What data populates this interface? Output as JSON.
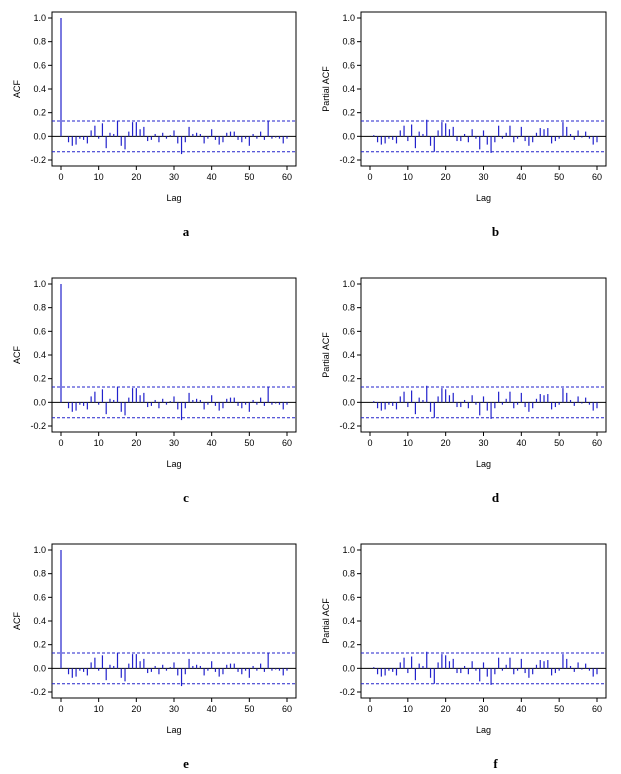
{
  "chart_data": [
    {
      "type": "bar",
      "panel_label": "a",
      "xlabel": "Lag",
      "ylabel": "ACF",
      "xlim": [
        0,
        60
      ],
      "ylim": [
        -0.2,
        1.0
      ],
      "xticks": [
        "0",
        "10",
        "20",
        "30",
        "40",
        "50",
        "60"
      ],
      "yticks": [
        "-0.2",
        "0.0",
        "0.2",
        "0.4",
        "0.6",
        "0.8",
        "1.0"
      ],
      "confidence_band": [
        0.13,
        -0.13
      ],
      "x": [
        0,
        1,
        2,
        3,
        4,
        5,
        6,
        7,
        8,
        9,
        10,
        11,
        12,
        13,
        14,
        15,
        16,
        17,
        18,
        19,
        20,
        21,
        22,
        23,
        24,
        25,
        26,
        27,
        28,
        29,
        30,
        31,
        32,
        33,
        34,
        35,
        36,
        37,
        38,
        39,
        40,
        41,
        42,
        43,
        44,
        45,
        46,
        47,
        48,
        49,
        50,
        51,
        52,
        53,
        54,
        55,
        56,
        57,
        58,
        59,
        60
      ],
      "values": [
        1.0,
        0.0,
        -0.05,
        -0.08,
        -0.07,
        -0.02,
        -0.03,
        -0.06,
        0.05,
        0.09,
        -0.02,
        0.11,
        -0.1,
        0.03,
        0.02,
        0.13,
        -0.08,
        -0.11,
        0.04,
        0.12,
        0.12,
        0.06,
        0.08,
        -0.04,
        -0.03,
        0.02,
        -0.05,
        0.03,
        -0.02,
        0.01,
        0.05,
        -0.06,
        -0.15,
        -0.05,
        0.08,
        0.02,
        0.03,
        0.02,
        -0.06,
        -0.02,
        0.06,
        -0.03,
        -0.07,
        -0.05,
        0.03,
        0.04,
        0.04,
        -0.03,
        -0.05,
        -0.02,
        -0.08,
        0.02,
        -0.02,
        0.04,
        -0.03,
        0.13,
        -0.02,
        -0.01,
        -0.02,
        -0.06,
        -0.02
      ]
    },
    {
      "type": "bar",
      "panel_label": "b",
      "xlabel": "Lag",
      "ylabel": "Partial ACF",
      "xlim": [
        0,
        60
      ],
      "ylim": [
        -0.2,
        1.0
      ],
      "xticks": [
        "0",
        "10",
        "20",
        "30",
        "40",
        "50",
        "60"
      ],
      "yticks": [
        "-0.2",
        "0.0",
        "0.2",
        "0.4",
        "0.6",
        "0.8",
        "1.0"
      ],
      "confidence_band": [
        0.13,
        -0.13
      ],
      "x": [
        1,
        2,
        3,
        4,
        5,
        6,
        7,
        8,
        9,
        10,
        11,
        12,
        13,
        14,
        15,
        16,
        17,
        18,
        19,
        20,
        21,
        22,
        23,
        24,
        25,
        26,
        27,
        28,
        29,
        30,
        31,
        32,
        33,
        34,
        35,
        36,
        37,
        38,
        39,
        40,
        41,
        42,
        43,
        44,
        45,
        46,
        47,
        48,
        49,
        50,
        51,
        52,
        53,
        54,
        55,
        56,
        57,
        58,
        59,
        60
      ],
      "values": [
        0.01,
        -0.05,
        -0.07,
        -0.06,
        -0.02,
        -0.03,
        -0.06,
        0.05,
        0.09,
        -0.04,
        0.1,
        -0.1,
        0.04,
        0.02,
        0.14,
        -0.08,
        -0.13,
        0.05,
        0.12,
        0.11,
        0.06,
        0.08,
        -0.04,
        -0.04,
        0.02,
        -0.05,
        0.06,
        -0.02,
        -0.11,
        0.05,
        -0.07,
        -0.14,
        -0.05,
        0.09,
        -0.02,
        0.03,
        0.09,
        -0.05,
        -0.02,
        0.08,
        -0.04,
        -0.08,
        -0.05,
        0.03,
        0.07,
        0.06,
        0.07,
        -0.06,
        -0.04,
        -0.02,
        0.12,
        0.08,
        0.02,
        -0.03,
        0.05,
        -0.01,
        0.04,
        -0.02,
        -0.07,
        -0.05
      ]
    },
    {
      "type": "bar",
      "panel_label": "c",
      "xlabel": "Lag",
      "ylabel": "ACF",
      "xlim": [
        0,
        60
      ],
      "ylim": [
        -0.2,
        1.0
      ],
      "xticks": [
        "0",
        "10",
        "20",
        "30",
        "40",
        "50",
        "60"
      ],
      "yticks": [
        "-0.2",
        "0.0",
        "0.2",
        "0.4",
        "0.6",
        "0.8",
        "1.0"
      ],
      "confidence_band": [
        0.13,
        -0.13
      ],
      "x": [
        0,
        1,
        2,
        3,
        4,
        5,
        6,
        7,
        8,
        9,
        10,
        11,
        12,
        13,
        14,
        15,
        16,
        17,
        18,
        19,
        20,
        21,
        22,
        23,
        24,
        25,
        26,
        27,
        28,
        29,
        30,
        31,
        32,
        33,
        34,
        35,
        36,
        37,
        38,
        39,
        40,
        41,
        42,
        43,
        44,
        45,
        46,
        47,
        48,
        49,
        50,
        51,
        52,
        53,
        54,
        55,
        56,
        57,
        58,
        59,
        60
      ],
      "values": [
        1.0,
        0.0,
        -0.05,
        -0.08,
        -0.07,
        -0.02,
        -0.03,
        -0.06,
        0.05,
        0.09,
        -0.02,
        0.11,
        -0.1,
        0.03,
        0.02,
        0.13,
        -0.08,
        -0.11,
        0.04,
        0.12,
        0.12,
        0.06,
        0.08,
        -0.04,
        -0.03,
        0.02,
        -0.05,
        0.03,
        -0.02,
        0.01,
        0.05,
        -0.06,
        -0.15,
        -0.05,
        0.08,
        0.02,
        0.03,
        0.02,
        -0.06,
        -0.02,
        0.06,
        -0.03,
        -0.07,
        -0.05,
        0.03,
        0.04,
        0.04,
        -0.03,
        -0.05,
        -0.02,
        -0.08,
        0.02,
        -0.02,
        0.04,
        -0.03,
        0.13,
        -0.02,
        -0.01,
        -0.02,
        -0.06,
        -0.02
      ]
    },
    {
      "type": "bar",
      "panel_label": "d",
      "xlabel": "Lag",
      "ylabel": "Partial ACF",
      "xlim": [
        0,
        60
      ],
      "ylim": [
        -0.2,
        1.0
      ],
      "xticks": [
        "0",
        "10",
        "20",
        "30",
        "40",
        "50",
        "60"
      ],
      "yticks": [
        "-0.2",
        "0.0",
        "0.2",
        "0.4",
        "0.6",
        "0.8",
        "1.0"
      ],
      "confidence_band": [
        0.13,
        -0.13
      ],
      "x": [
        1,
        2,
        3,
        4,
        5,
        6,
        7,
        8,
        9,
        10,
        11,
        12,
        13,
        14,
        15,
        16,
        17,
        18,
        19,
        20,
        21,
        22,
        23,
        24,
        25,
        26,
        27,
        28,
        29,
        30,
        31,
        32,
        33,
        34,
        35,
        36,
        37,
        38,
        39,
        40,
        41,
        42,
        43,
        44,
        45,
        46,
        47,
        48,
        49,
        50,
        51,
        52,
        53,
        54,
        55,
        56,
        57,
        58,
        59,
        60
      ],
      "values": [
        0.01,
        -0.05,
        -0.07,
        -0.06,
        -0.02,
        -0.03,
        -0.06,
        0.05,
        0.09,
        -0.04,
        0.1,
        -0.1,
        0.04,
        0.02,
        0.14,
        -0.08,
        -0.13,
        0.05,
        0.12,
        0.11,
        0.06,
        0.08,
        -0.04,
        -0.04,
        0.02,
        -0.05,
        0.06,
        -0.02,
        -0.11,
        0.05,
        -0.07,
        -0.14,
        -0.05,
        0.09,
        -0.02,
        0.03,
        0.09,
        -0.05,
        -0.02,
        0.08,
        -0.04,
        -0.08,
        -0.05,
        0.03,
        0.07,
        0.06,
        0.07,
        -0.06,
        -0.04,
        -0.02,
        0.12,
        0.08,
        0.02,
        -0.03,
        0.05,
        -0.01,
        0.04,
        -0.02,
        -0.07,
        -0.05
      ]
    },
    {
      "type": "bar",
      "panel_label": "e",
      "xlabel": "Lag",
      "ylabel": "ACF",
      "xlim": [
        0,
        60
      ],
      "ylim": [
        -0.2,
        1.0
      ],
      "xticks": [
        "0",
        "10",
        "20",
        "30",
        "40",
        "50",
        "60"
      ],
      "yticks": [
        "-0.2",
        "0.0",
        "0.2",
        "0.4",
        "0.6",
        "0.8",
        "1.0"
      ],
      "confidence_band": [
        0.13,
        -0.13
      ],
      "x": [
        0,
        1,
        2,
        3,
        4,
        5,
        6,
        7,
        8,
        9,
        10,
        11,
        12,
        13,
        14,
        15,
        16,
        17,
        18,
        19,
        20,
        21,
        22,
        23,
        24,
        25,
        26,
        27,
        28,
        29,
        30,
        31,
        32,
        33,
        34,
        35,
        36,
        37,
        38,
        39,
        40,
        41,
        42,
        43,
        44,
        45,
        46,
        47,
        48,
        49,
        50,
        51,
        52,
        53,
        54,
        55,
        56,
        57,
        58,
        59,
        60
      ],
      "values": [
        1.0,
        0.0,
        -0.05,
        -0.08,
        -0.07,
        -0.02,
        -0.03,
        -0.06,
        0.05,
        0.09,
        -0.02,
        0.11,
        -0.1,
        0.03,
        0.02,
        0.13,
        -0.08,
        -0.11,
        0.04,
        0.12,
        0.12,
        0.06,
        0.08,
        -0.04,
        -0.03,
        0.02,
        -0.05,
        0.03,
        -0.02,
        0.01,
        0.05,
        -0.06,
        -0.15,
        -0.05,
        0.08,
        0.02,
        0.03,
        0.02,
        -0.06,
        -0.02,
        0.06,
        -0.03,
        -0.07,
        -0.05,
        0.03,
        0.04,
        0.04,
        -0.03,
        -0.05,
        -0.02,
        -0.08,
        0.02,
        -0.02,
        0.04,
        -0.03,
        0.13,
        -0.02,
        -0.01,
        -0.02,
        -0.06,
        -0.02
      ]
    },
    {
      "type": "bar",
      "panel_label": "f",
      "xlabel": "Lag",
      "ylabel": "Partial ACF",
      "xlim": [
        0,
        60
      ],
      "ylim": [
        -0.2,
        1.0
      ],
      "xticks": [
        "0",
        "10",
        "20",
        "30",
        "40",
        "50",
        "60"
      ],
      "yticks": [
        "-0.2",
        "0.0",
        "0.2",
        "0.4",
        "0.6",
        "0.8",
        "1.0"
      ],
      "confidence_band": [
        0.13,
        -0.13
      ],
      "x": [
        1,
        2,
        3,
        4,
        5,
        6,
        7,
        8,
        9,
        10,
        11,
        12,
        13,
        14,
        15,
        16,
        17,
        18,
        19,
        20,
        21,
        22,
        23,
        24,
        25,
        26,
        27,
        28,
        29,
        30,
        31,
        32,
        33,
        34,
        35,
        36,
        37,
        38,
        39,
        40,
        41,
        42,
        43,
        44,
        45,
        46,
        47,
        48,
        49,
        50,
        51,
        52,
        53,
        54,
        55,
        56,
        57,
        58,
        59,
        60
      ],
      "values": [
        0.01,
        -0.05,
        -0.07,
        -0.06,
        -0.02,
        -0.03,
        -0.06,
        0.05,
        0.09,
        -0.04,
        0.1,
        -0.1,
        0.04,
        0.02,
        0.14,
        -0.08,
        -0.13,
        0.05,
        0.12,
        0.11,
        0.06,
        0.08,
        -0.04,
        -0.04,
        0.02,
        -0.05,
        0.06,
        -0.02,
        -0.11,
        0.05,
        -0.07,
        -0.14,
        -0.05,
        0.09,
        -0.02,
        0.03,
        0.09,
        -0.05,
        -0.02,
        0.08,
        -0.04,
        -0.08,
        -0.05,
        0.03,
        0.07,
        0.06,
        0.07,
        -0.06,
        -0.04,
        -0.02,
        0.12,
        0.08,
        0.02,
        -0.03,
        0.05,
        -0.01,
        0.04,
        -0.02,
        -0.07,
        -0.05
      ]
    }
  ],
  "colors": {
    "bars": "#2222cc",
    "confidence_band": "#2222cc",
    "axes": "#000000",
    "zero_line": "#000000"
  }
}
